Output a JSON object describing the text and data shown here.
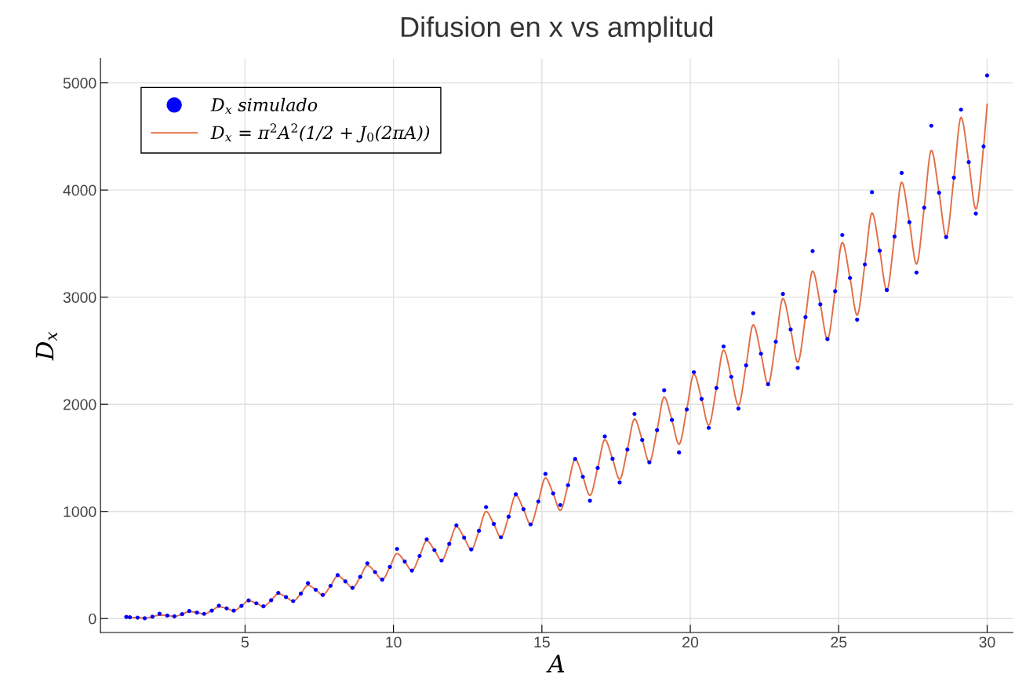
{
  "chart_data": {
    "type": "scatter",
    "title": "Difusion en x vs amplitud",
    "xlabel": "A",
    "ylabel": "D$_{x}$",
    "xlim": [
      0.13,
      30.87
    ],
    "ylim": [
      -130,
      5227
    ],
    "xticks": [
      5,
      10,
      15,
      20,
      25,
      30
    ],
    "yticks": [
      0,
      1000,
      2000,
      3000,
      4000,
      5000
    ],
    "grid": true,
    "legend": "top left",
    "series": [
      {
        "name": "D$_{x}$ simulado",
        "type": "scatter",
        "color": "#0000ff",
        "marker": "circle",
        "x": [
          1.0,
          1.12,
          1.38,
          1.62,
          1.88,
          2.12,
          2.38,
          2.62,
          2.88,
          3.12,
          3.38,
          3.62,
          3.88,
          4.12,
          4.38,
          4.62,
          4.88,
          5.12,
          5.38,
          5.62,
          5.88,
          6.12,
          6.38,
          6.62,
          6.88,
          7.12,
          7.38,
          7.62,
          7.88,
          8.12,
          8.38,
          8.62,
          8.88,
          9.12,
          9.38,
          9.62,
          9.88,
          10.12,
          10.38,
          10.62,
          10.88,
          11.12,
          11.38,
          11.62,
          11.88,
          12.12,
          12.38,
          12.62,
          12.88,
          13.12,
          13.38,
          13.62,
          13.88,
          14.12,
          14.38,
          14.62,
          14.88,
          15.12,
          15.38,
          15.62,
          15.88,
          16.12,
          16.38,
          16.62,
          16.88,
          17.12,
          17.38,
          17.62,
          17.88,
          18.12,
          18.38,
          18.62,
          18.88,
          19.12,
          19.38,
          19.62,
          19.88,
          20.12,
          20.38,
          20.62,
          20.88,
          21.12,
          21.38,
          21.62,
          21.88,
          22.12,
          22.38,
          22.62,
          22.88,
          23.12,
          23.38,
          23.62,
          23.88,
          24.12,
          24.38,
          24.62,
          24.88,
          25.12,
          25.38,
          25.62,
          25.88,
          26.12,
          26.38,
          26.62,
          26.88,
          27.12,
          27.38,
          27.62,
          27.88,
          28.12,
          28.38,
          28.62,
          28.88,
          29.12,
          29.38,
          29.62,
          29.88,
          30.0
        ],
        "values": [
          15,
          12,
          9,
          3,
          17,
          45,
          28,
          21,
          41,
          70,
          56,
          44,
          74,
          120,
          95,
          74,
          118,
          170,
          143,
          114,
          171,
          240,
          201,
          163,
          234,
          330,
          269,
          220,
          306,
          405,
          347,
          287,
          389,
          515,
          434,
          363,
          482,
          650,
          532,
          448,
          584,
          740,
          639,
          542,
          697,
          870,
          756,
          645,
          819,
          1040,
          884,
          758,
          951,
          1160,
          1021,
          879,
          1093,
          1350,
          1167,
          1060,
          1245,
          1490,
          1324,
          1100,
          1406,
          1700,
          1491,
          1270,
          1578,
          1910,
          1667,
          1459,
          1759,
          2130,
          1854,
          1550,
          1951,
          2300,
          2050,
          1780,
          2152,
          2540,
          2256,
          1960,
          2363,
          2850,
          2472,
          2187,
          2584,
          3030,
          2698,
          2340,
          2814,
          3430,
          2933,
          2608,
          3055,
          3580,
          3179,
          2790,
          3305,
          3980,
          3434,
          3066,
          3566,
          4160,
          3700,
          3230,
          3836,
          4600,
          3975,
          3561,
          4116,
          4750,
          4260,
          3780,
          4406,
          5070
        ]
      },
      {
        "name": "D$_{x}$ = π$^{2}$A$^{2}$(1/2 + J$_{0}$(2πA))",
        "type": "line",
        "color": "#e26f46",
        "marker": "none",
        "x": [
          1.0,
          1.12,
          1.38,
          1.62,
          1.88,
          2.12,
          2.38,
          2.62,
          2.88,
          3.12,
          3.38,
          3.62,
          3.88,
          4.12,
          4.38,
          4.62,
          4.88,
          5.12,
          5.38,
          5.62,
          5.88,
          6.12,
          6.38,
          6.62,
          6.88,
          7.12,
          7.38,
          7.62,
          7.88,
          8.12,
          8.38,
          8.62,
          8.88,
          9.12,
          9.38,
          9.62,
          9.88,
          10.12,
          10.38,
          10.62,
          10.88,
          11.12,
          11.38,
          11.62,
          11.88,
          12.12,
          12.38,
          12.62,
          12.88,
          13.12,
          13.38,
          13.62,
          13.88,
          14.12,
          14.38,
          14.62,
          14.88,
          15.12,
          15.38,
          15.62,
          15.88,
          16.12,
          16.38,
          16.62,
          16.88,
          17.12,
          17.38,
          17.62,
          17.88,
          18.12,
          18.38,
          18.62,
          18.88,
          19.12,
          19.38,
          19.62,
          19.88,
          20.12,
          20.38,
          20.62,
          20.88,
          21.12,
          21.38,
          21.62,
          21.88,
          22.12,
          22.38,
          22.62,
          22.88,
          23.12,
          23.38,
          23.62,
          23.88,
          24.12,
          24.38,
          24.62,
          24.88,
          25.12,
          25.38,
          25.62,
          25.88,
          26.12,
          26.38,
          26.62,
          26.88,
          27.12,
          27.38,
          27.62,
          27.88,
          28.12,
          28.38,
          28.62,
          28.88,
          29.12,
          29.38,
          29.62,
          29.88,
          30.0
        ],
        "values": [
          7,
          10,
          9,
          3,
          17,
          32,
          28,
          21,
          41,
          65,
          56,
          44,
          74,
          110,
          95,
          74,
          118,
          166,
          143,
          114,
          171,
          232,
          201,
          163,
          234,
          310,
          269,
          220,
          306,
          398,
          347,
          287,
          389,
          497,
          434,
          363,
          482,
          607,
          532,
          448,
          584,
          727,
          639,
          542,
          697,
          858,
          756,
          645,
          819,
          999,
          884,
          758,
          951,
          1151,
          1021,
          879,
          1093,
          1313,
          1167,
          1010,
          1245,
          1486,
          1324,
          1150,
          1406,
          1669,
          1491,
          1300,
          1578,
          1863,
          1667,
          1459,
          1759,
          2067,
          1854,
          1627,
          1951,
          2282,
          2050,
          1804,
          2152,
          2506,
          2256,
          1991,
          2363,
          2742,
          2472,
          2187,
          2584,
          2987,
          2698,
          2393,
          2814,
          3244,
          2933,
          2608,
          3055,
          3510,
          3179,
          2832,
          3305,
          3786,
          3434,
          3066,
          3566,
          4073,
          3700,
          3309,
          3836,
          4371,
          3975,
          3561,
          4116,
          4678,
          4260,
          3823,
          4406,
          4800
        ]
      }
    ]
  }
}
